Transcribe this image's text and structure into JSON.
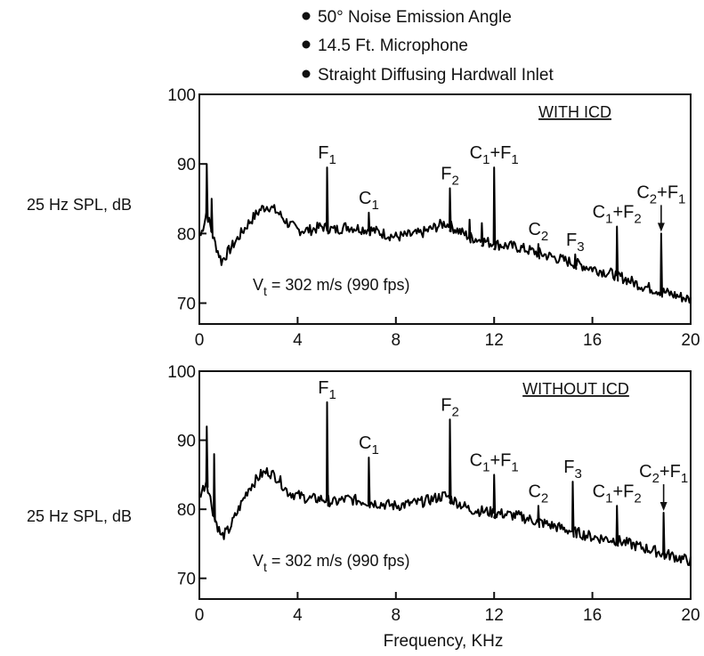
{
  "notes": [
    "50° Noise Emission Angle",
    "14.5 Ft. Microphone",
    "Straight Diffusing Hardwall Inlet"
  ],
  "chart_data": [
    {
      "type": "line",
      "panel_label": "WITH ICD",
      "ylabel": "25 Hz SPL, dB",
      "xlabel": "",
      "xlim": [
        0,
        20
      ],
      "ylim": [
        67,
        100
      ],
      "xticks": [
        "0",
        "4",
        "8",
        "12",
        "16",
        "20"
      ],
      "yticks": [
        "70",
        "80",
        "90",
        "100"
      ],
      "annotation": "V_t = 302 m/s (990 fps)",
      "annotation_main": "V",
      "annotation_sub": "t",
      "annotation_rest": " = 302 m/s (990 fps)",
      "color": "#000000",
      "baseline": {
        "x": [
          0,
          0.3,
          0.6,
          0.9,
          1.2,
          1.6,
          2.0,
          2.5,
          2.8,
          3.2,
          3.6,
          4.0,
          4.5,
          5.0,
          5.5,
          6.0,
          7.0,
          8.0,
          9.0,
          10.0,
          10.5,
          11.0,
          12.0,
          13.0,
          14.0,
          15.0,
          16.0,
          17.0,
          18.0,
          19.0,
          20.0
        ],
        "y": [
          79,
          83,
          79,
          76,
          77.5,
          79.5,
          81.5,
          83.5,
          84,
          83,
          81.5,
          80.5,
          80.5,
          81,
          80.5,
          81,
          80.5,
          79.5,
          80,
          81.5,
          80.5,
          79.5,
          78.5,
          78,
          77,
          76,
          75,
          74,
          72.5,
          71.5,
          70.5
        ]
      },
      "peaks": [
        {
          "x": 0.3,
          "y": 90
        },
        {
          "x": 0.5,
          "y": 85
        },
        {
          "x": 5.2,
          "y": 89.5,
          "label": "F",
          "sub": "1"
        },
        {
          "x": 6.9,
          "y": 83,
          "label": "C",
          "sub": "1"
        },
        {
          "x": 10.2,
          "y": 86.5,
          "label": "F",
          "sub": "2"
        },
        {
          "x": 11.0,
          "y": 82
        },
        {
          "x": 11.5,
          "y": 81.5
        },
        {
          "x": 12.0,
          "y": 89.5,
          "label": "C",
          "sub": "1",
          "suffix": "+F",
          "suffix_sub": "1"
        },
        {
          "x": 13.8,
          "y": 78.5,
          "label": "C",
          "sub": "2"
        },
        {
          "x": 15.3,
          "y": 77,
          "label": "F",
          "sub": "3"
        },
        {
          "x": 17.0,
          "y": 81,
          "label": "C",
          "sub": "1",
          "suffix": "+F",
          "suffix_sub": "2"
        },
        {
          "x": 18.8,
          "y": 80,
          "label": "C",
          "sub": "2",
          "suffix": "+F",
          "suffix_sub": "1",
          "arrow": true
        }
      ]
    },
    {
      "type": "line",
      "panel_label": "WITHOUT ICD",
      "ylabel": "25 Hz SPL, dB",
      "xlabel": "Frequency, KHz",
      "xlim": [
        0,
        20
      ],
      "ylim": [
        67,
        100
      ],
      "xticks": [
        "0",
        "4",
        "8",
        "12",
        "16",
        "20"
      ],
      "yticks": [
        "70",
        "80",
        "90",
        "100"
      ],
      "annotation": "V_t = 302 m/s (990 fps)",
      "annotation_main": "V",
      "annotation_sub": "t",
      "annotation_rest": " = 302 m/s (990 fps)",
      "color": "#000000",
      "baseline": {
        "x": [
          0,
          0.3,
          0.6,
          0.9,
          1.2,
          1.6,
          2.0,
          2.5,
          2.8,
          3.2,
          3.6,
          4.0,
          4.5,
          5.0,
          5.5,
          6.0,
          7.0,
          8.0,
          9.0,
          10.0,
          10.5,
          11.0,
          12.0,
          13.0,
          14.0,
          15.0,
          16.0,
          17.0,
          18.0,
          19.0,
          20.0
        ],
        "y": [
          82,
          84,
          79,
          76,
          77,
          80,
          83,
          85,
          85.5,
          84.5,
          82.5,
          82,
          81.5,
          81.5,
          81,
          81.5,
          81,
          80.5,
          81,
          82,
          81,
          80,
          79.5,
          79,
          78,
          77,
          76,
          75.5,
          74.5,
          73.5,
          72.5
        ]
      },
      "peaks": [
        {
          "x": 0.3,
          "y": 92
        },
        {
          "x": 0.6,
          "y": 88
        },
        {
          "x": 5.2,
          "y": 95.5,
          "label": "F",
          "sub": "1"
        },
        {
          "x": 6.9,
          "y": 87.5,
          "label": "C",
          "sub": "1"
        },
        {
          "x": 10.2,
          "y": 93,
          "label": "F",
          "sub": "2"
        },
        {
          "x": 12.0,
          "y": 85,
          "label": "C",
          "sub": "1",
          "suffix": "+F",
          "suffix_sub": "1"
        },
        {
          "x": 13.8,
          "y": 80.5,
          "label": "C",
          "sub": "2"
        },
        {
          "x": 15.2,
          "y": 84,
          "label": "F",
          "sub": "3"
        },
        {
          "x": 17.0,
          "y": 80.5,
          "label": "C",
          "sub": "1",
          "suffix": "+F",
          "suffix_sub": "2"
        },
        {
          "x": 18.9,
          "y": 79.5,
          "label": "C",
          "sub": "2",
          "suffix": "+F",
          "suffix_sub": "1",
          "arrow": true
        }
      ]
    }
  ]
}
